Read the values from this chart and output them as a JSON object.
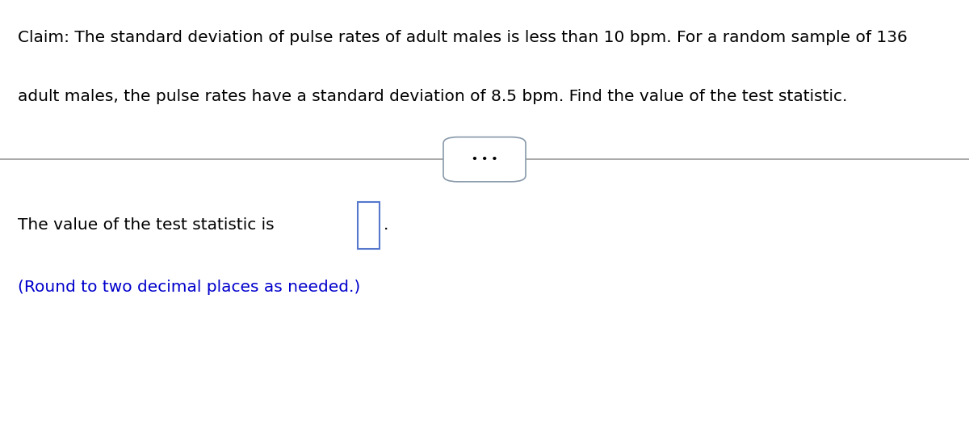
{
  "background_color": "#ffffff",
  "title_text_line1": "Claim: The standard deviation of pulse rates of adult males is less than 10 bpm. For a random sample of 136",
  "title_text_line2": "adult males, the pulse rates have a standard deviation of 8.5 bpm. Find the value of the test statistic.",
  "dots_text": "• • •",
  "body_text_prefix": "The value of the test statistic is ",
  "body_text_suffix": ".",
  "round_text": "(Round to two decimal places as needed.)",
  "round_color": "#0000cc",
  "text_color": "#000000",
  "divider_color": "#999999",
  "box_border_color": "#5577cc",
  "font_size_title": 14.5,
  "font_size_body": 14.5,
  "font_size_round": 14.5,
  "font_size_dots": 9
}
